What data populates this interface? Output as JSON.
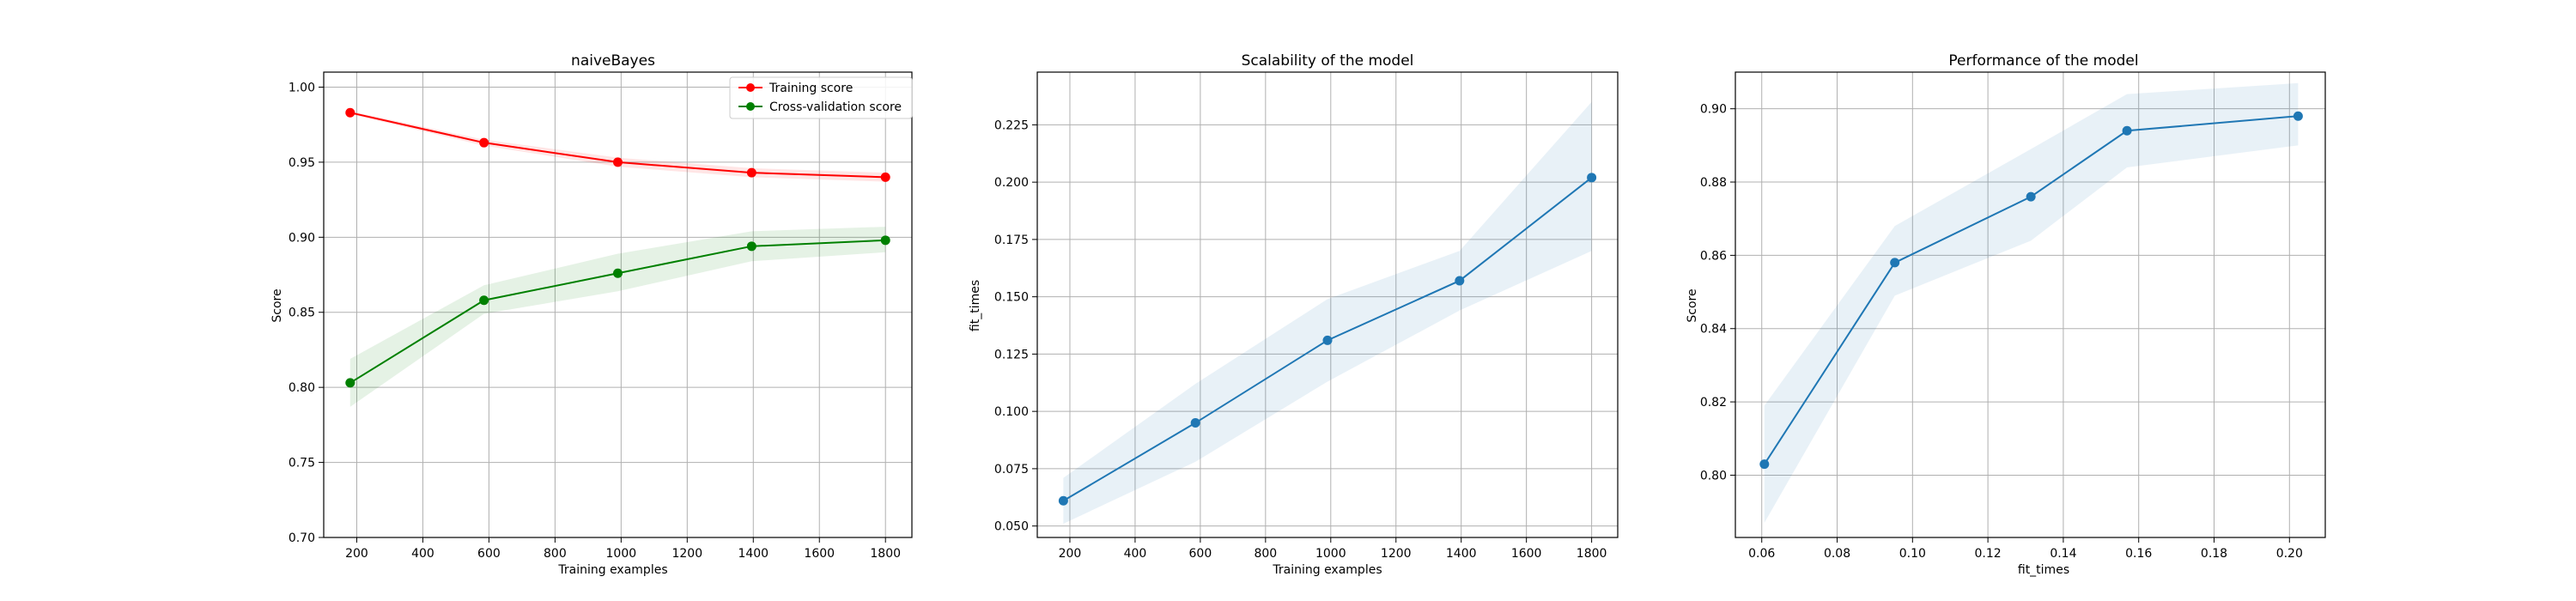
{
  "chart_data": [
    {
      "type": "line",
      "title": "naiveBayes",
      "xlabel": "Training examples",
      "ylabel": "Score",
      "xlim": [
        100,
        1880
      ],
      "ylim": [
        0.7,
        1.01
      ],
      "xticks": [
        200,
        400,
        600,
        800,
        1000,
        1200,
        1400,
        1600,
        1800
      ],
      "yticks": [
        0.7,
        0.75,
        0.8,
        0.85,
        0.9,
        0.95,
        1.0
      ],
      "xtick_labels": [
        "200",
        "400",
        "600",
        "800",
        "1000",
        "1200",
        "1400",
        "1600",
        "1800"
      ],
      "ytick_labels": [
        "0.70",
        "0.75",
        "0.80",
        "0.85",
        "0.90",
        "0.95",
        "1.00"
      ],
      "grid": true,
      "legend_position": "top-right",
      "x": [
        180,
        585,
        990,
        1395,
        1800
      ],
      "series": [
        {
          "name": "Training score",
          "color": "#ff0000",
          "values": [
            0.983,
            0.963,
            0.95,
            0.943,
            0.94
          ],
          "band_lower": [
            0.982,
            0.961,
            0.947,
            0.94,
            0.937
          ],
          "band_upper": [
            0.984,
            0.965,
            0.953,
            0.946,
            0.943
          ]
        },
        {
          "name": "Cross-validation score",
          "color": "#008000",
          "values": [
            0.803,
            0.858,
            0.876,
            0.894,
            0.898
          ],
          "band_lower": [
            0.787,
            0.849,
            0.864,
            0.884,
            0.89
          ],
          "band_upper": [
            0.819,
            0.868,
            0.889,
            0.904,
            0.907
          ]
        }
      ]
    },
    {
      "type": "line",
      "title": "Scalability of the model",
      "xlabel": "Training examples",
      "ylabel": "fit_times",
      "xlim": [
        100,
        1880
      ],
      "ylim": [
        0.045,
        0.248
      ],
      "xticks": [
        200,
        400,
        600,
        800,
        1000,
        1200,
        1400,
        1600,
        1800
      ],
      "yticks": [
        0.05,
        0.075,
        0.1,
        0.125,
        0.15,
        0.175,
        0.2,
        0.225
      ],
      "xtick_labels": [
        "200",
        "400",
        "600",
        "800",
        "1000",
        "1200",
        "1400",
        "1600",
        "1800"
      ],
      "ytick_labels": [
        "0.050",
        "0.075",
        "0.100",
        "0.125",
        "0.150",
        "0.175",
        "0.200",
        "0.225"
      ],
      "grid": true,
      "x": [
        180,
        585,
        990,
        1395,
        1800
      ],
      "series": [
        {
          "name": "",
          "color": "#1f77b4",
          "values": [
            0.061,
            0.095,
            0.131,
            0.157,
            0.202
          ],
          "band_lower": [
            0.051,
            0.078,
            0.113,
            0.144,
            0.17
          ],
          "band_upper": [
            0.071,
            0.112,
            0.149,
            0.17,
            0.235
          ]
        }
      ]
    },
    {
      "type": "line",
      "title": "Performance of the model",
      "xlabel": "fit_times",
      "ylabel": "Score",
      "xlim": [
        0.053,
        0.2095
      ],
      "ylim": [
        0.783,
        0.91
      ],
      "xticks": [
        0.06,
        0.08,
        0.1,
        0.12,
        0.14,
        0.16,
        0.18,
        0.2
      ],
      "yticks": [
        0.8,
        0.82,
        0.84,
        0.86,
        0.88,
        0.9
      ],
      "xtick_labels": [
        "0.06",
        "0.08",
        "0.10",
        "0.12",
        "0.14",
        "0.16",
        "0.18",
        "0.20"
      ],
      "ytick_labels": [
        "0.80",
        "0.82",
        "0.84",
        "0.86",
        "0.88",
        "0.90"
      ],
      "grid": true,
      "x": [
        0.0607,
        0.0953,
        0.1314,
        0.1569,
        0.2023
      ],
      "series": [
        {
          "name": "",
          "color": "#1f77b4",
          "values": [
            0.803,
            0.858,
            0.876,
            0.894,
            0.898
          ],
          "band_lower": [
            0.787,
            0.849,
            0.864,
            0.884,
            0.89
          ],
          "band_upper": [
            0.819,
            0.868,
            0.889,
            0.904,
            0.907
          ]
        }
      ]
    }
  ]
}
